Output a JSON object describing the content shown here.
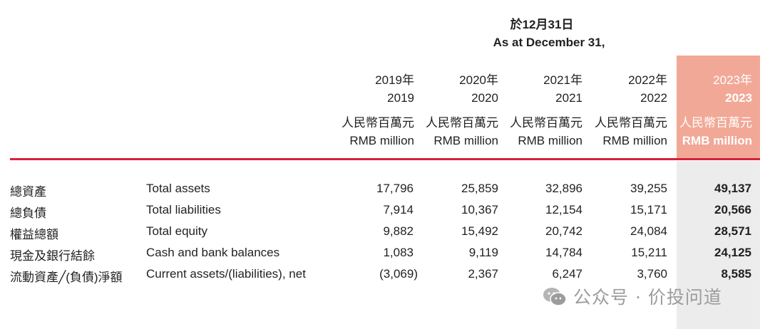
{
  "header": {
    "date_zh": "於12月31日",
    "date_en": "As at December 31,"
  },
  "columns": [
    {
      "year_zh": "2019年",
      "year_en": "2019",
      "unit_zh": "人民幣百萬元",
      "unit_en": "RMB million"
    },
    {
      "year_zh": "2020年",
      "year_en": "2020",
      "unit_zh": "人民幣百萬元",
      "unit_en": "RMB million"
    },
    {
      "year_zh": "2021年",
      "year_en": "2021",
      "unit_zh": "人民幣百萬元",
      "unit_en": "RMB million"
    },
    {
      "year_zh": "2022年",
      "year_en": "2022",
      "unit_zh": "人民幣百萬元",
      "unit_en": "RMB million"
    },
    {
      "year_zh": "2023年",
      "year_en": "2023",
      "unit_zh": "人民幣百萬元",
      "unit_en": "RMB million"
    }
  ],
  "rows": [
    {
      "label_zh": "總資產",
      "label_en": "Total assets",
      "values": [
        "17,796",
        "25,859",
        "32,896",
        "39,255",
        "49,137"
      ]
    },
    {
      "label_zh": "總負債",
      "label_en": "Total liabilities",
      "values": [
        "7,914",
        "10,367",
        "12,154",
        "15,171",
        "20,566"
      ]
    },
    {
      "label_zh": "權益總額",
      "label_en": "Total equity",
      "values": [
        "9,882",
        "15,492",
        "20,742",
        "24,084",
        "28,571"
      ]
    },
    {
      "label_zh": "現金及銀行結餘",
      "label_en": "Cash and bank balances",
      "values": [
        "1,083",
        "9,119",
        "14,784",
        "15,211",
        "24,125"
      ]
    },
    {
      "label_zh": "流動資產╱(負債)淨額",
      "label_en": "Current assets/(liabilities), net",
      "values": [
        "(3,069)",
        "2,367",
        "6,247",
        "3,760",
        "8,585"
      ]
    }
  ],
  "watermark": {
    "text": "公众号 · 价投问道",
    "icon": "wechat-icon"
  },
  "colors": {
    "accent_red": "#d6213a",
    "highlight_header": "#f2a896",
    "highlight_body": "#ececec"
  }
}
